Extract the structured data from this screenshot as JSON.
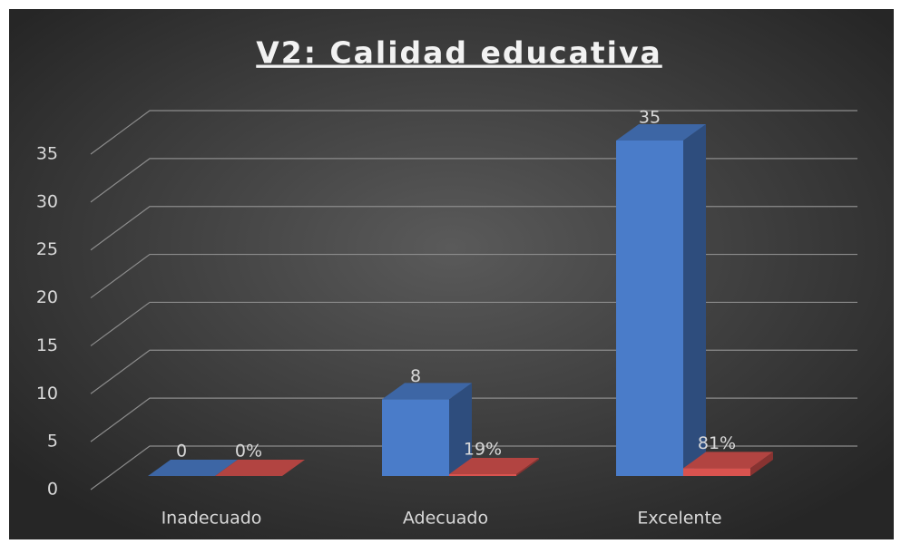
{
  "chart_data": {
    "type": "bar3d",
    "title": "V2: Calidad educativa",
    "categories": [
      "Inadecuado",
      "Adecuado",
      "Excelente"
    ],
    "series": [
      {
        "color": "#4a7cc9",
        "values": [
          0,
          8,
          35
        ]
      },
      {
        "color": "#d9534f",
        "values": [
          0,
          0.19,
          0.81
        ],
        "value_labels": [
          "0%",
          "19%",
          "81%"
        ]
      }
    ],
    "ylim": [
      0,
      35
    ],
    "yticks": [
      0,
      5,
      10,
      15,
      20,
      25,
      30,
      35
    ],
    "grid": true
  }
}
